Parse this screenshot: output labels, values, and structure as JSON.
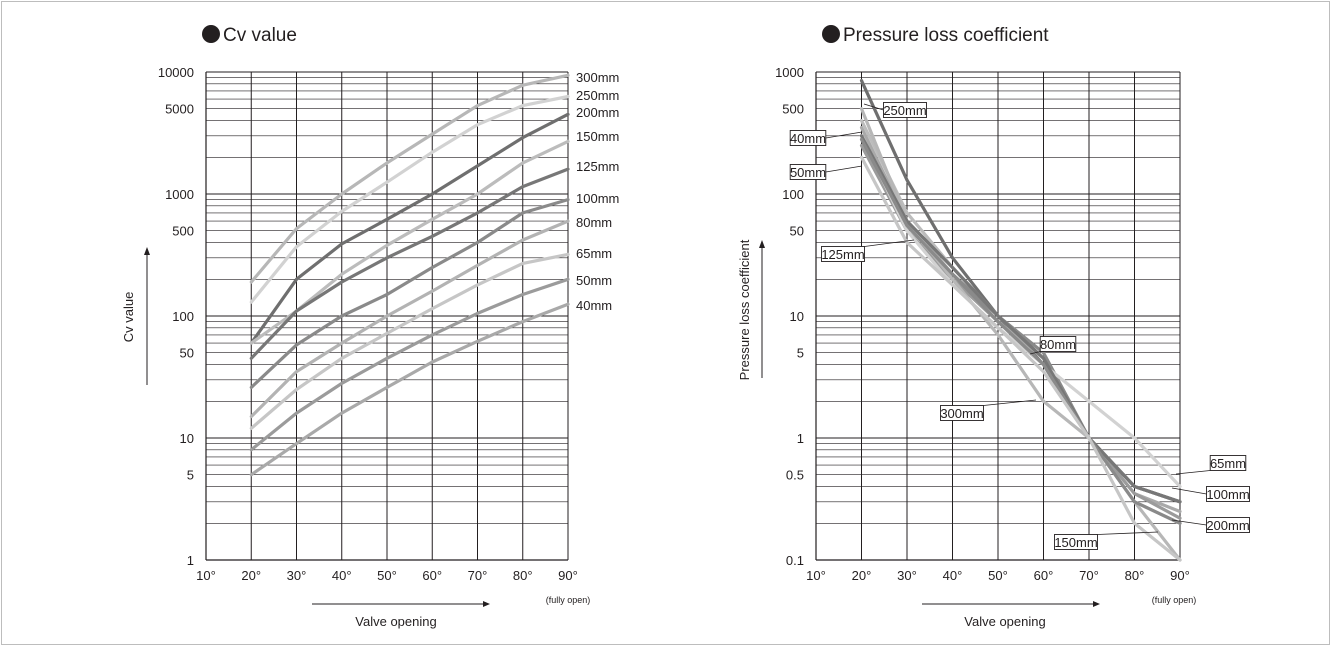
{
  "chart_data": [
    {
      "type": "line",
      "title": "Cv value",
      "xlabel": "Valve opening",
      "ylabel": "Cv value",
      "x_note": "(fully open)",
      "yscale": "log",
      "xlim": [
        10,
        90
      ],
      "ylim": [
        1,
        10000
      ],
      "x_ticks": [
        "10°",
        "20°",
        "30°",
        "40°",
        "50°",
        "60°",
        "70°",
        "80°",
        "90°"
      ],
      "y_ticks": [
        "1",
        "5",
        "10",
        "50",
        "100",
        "500",
        "1000",
        "5000",
        "10000"
      ],
      "grid": true,
      "x": [
        20,
        30,
        40,
        50,
        60,
        70,
        80,
        90
      ],
      "series": [
        {
          "name": "300mm",
          "color": "#b7b7b7",
          "values": [
            190,
            520,
            1000,
            1800,
            3100,
            5300,
            7800,
            9400
          ]
        },
        {
          "name": "250mm",
          "color": "#d2d2d2",
          "values": [
            130,
            370,
            720,
            1250,
            2200,
            3700,
            5300,
            6300
          ]
        },
        {
          "name": "200mm",
          "color": "#6f6f6f",
          "values": [
            60,
            200,
            390,
            620,
            1000,
            1700,
            2900,
            4500
          ]
        },
        {
          "name": "150mm",
          "color": "#bcbcbc",
          "values": [
            60,
            110,
            220,
            380,
            620,
            1000,
            1800,
            2700
          ]
        },
        {
          "name": "125mm",
          "color": "#777777",
          "values": [
            45,
            110,
            190,
            300,
            450,
            700,
            1150,
            1600
          ]
        },
        {
          "name": "100mm",
          "color": "#8a8a8a",
          "values": [
            26,
            58,
            100,
            150,
            250,
            400,
            700,
            900
          ]
        },
        {
          "name": "80mm",
          "color": "#b3b3b3",
          "values": [
            15,
            35,
            60,
            100,
            160,
            260,
            420,
            600
          ]
        },
        {
          "name": "65mm",
          "color": "#c6c6c6",
          "values": [
            12,
            25,
            45,
            72,
            115,
            180,
            270,
            320
          ]
        },
        {
          "name": "50mm",
          "color": "#9b9b9b",
          "values": [
            8,
            16,
            28,
            45,
            70,
            105,
            150,
            200
          ]
        },
        {
          "name": "40mm",
          "color": "#a9a9a9",
          "values": [
            5,
            9,
            16,
            26,
            42,
            62,
            90,
            125
          ]
        }
      ]
    },
    {
      "type": "line",
      "title": "Pressure loss coefficient",
      "xlabel": "Valve opening",
      "ylabel": "Pressure loss coefficient",
      "x_note": "(fully open)",
      "yscale": "log",
      "xlim": [
        10,
        90
      ],
      "ylim": [
        0.1,
        1000
      ],
      "x_ticks": [
        "10°",
        "20°",
        "30°",
        "40°",
        "50°",
        "60°",
        "70°",
        "80°",
        "90°"
      ],
      "y_ticks": [
        "0.1",
        "0.5",
        "1",
        "5",
        "10",
        "50",
        "100",
        "500",
        "1000"
      ],
      "grid": true,
      "x": [
        20,
        30,
        40,
        50,
        60,
        70,
        80,
        90
      ],
      "series": [
        {
          "name": "250mm",
          "color": "#6f6f6f",
          "values": [
            850,
            130,
            30,
            10,
            4,
            1,
            0.4,
            0.3
          ]
        },
        {
          "name": "40mm",
          "color": "#a9a9a9",
          "values": [
            350,
            60,
            22,
            9,
            4.5,
            1,
            0.35,
            0.25
          ]
        },
        {
          "name": "50mm",
          "color": "#bcbcbc",
          "values": [
            400,
            70,
            25,
            10,
            4.5,
            1,
            0.3,
            0.2
          ]
        },
        {
          "name": "125mm",
          "color": "#9b9b9b",
          "values": [
            250,
            50,
            20,
            9,
            4,
            1,
            0.35,
            0.22
          ]
        },
        {
          "name": "80mm",
          "color": "#8a8a8a",
          "values": [
            300,
            55,
            22,
            10,
            5,
            1,
            0.4,
            0.3
          ]
        },
        {
          "name": "300mm",
          "color": "#b7b7b7",
          "values": [
            500,
            60,
            20,
            7,
            2,
            1,
            0.3,
            0.1
          ]
        },
        {
          "name": "65mm",
          "color": "#d2d2d2",
          "values": [
            300,
            50,
            18,
            8,
            4,
            2,
            1,
            0.4
          ]
        },
        {
          "name": "100mm",
          "color": "#777777",
          "values": [
            300,
            60,
            25,
            10,
            4.5,
            1,
            0.4,
            0.3
          ]
        },
        {
          "name": "200mm",
          "color": "#8a8a8a",
          "values": [
            280,
            55,
            22,
            9,
            4,
            1,
            0.3,
            0.2
          ]
        },
        {
          "name": "150mm",
          "color": "#c6c6c6",
          "values": [
            200,
            40,
            18,
            8,
            3.5,
            1,
            0.2,
            0.1
          ]
        }
      ],
      "callouts": [
        "250mm",
        "40mm",
        "50mm",
        "125mm",
        "80mm",
        "300mm",
        "65mm",
        "100mm",
        "200mm",
        "150mm"
      ]
    }
  ]
}
